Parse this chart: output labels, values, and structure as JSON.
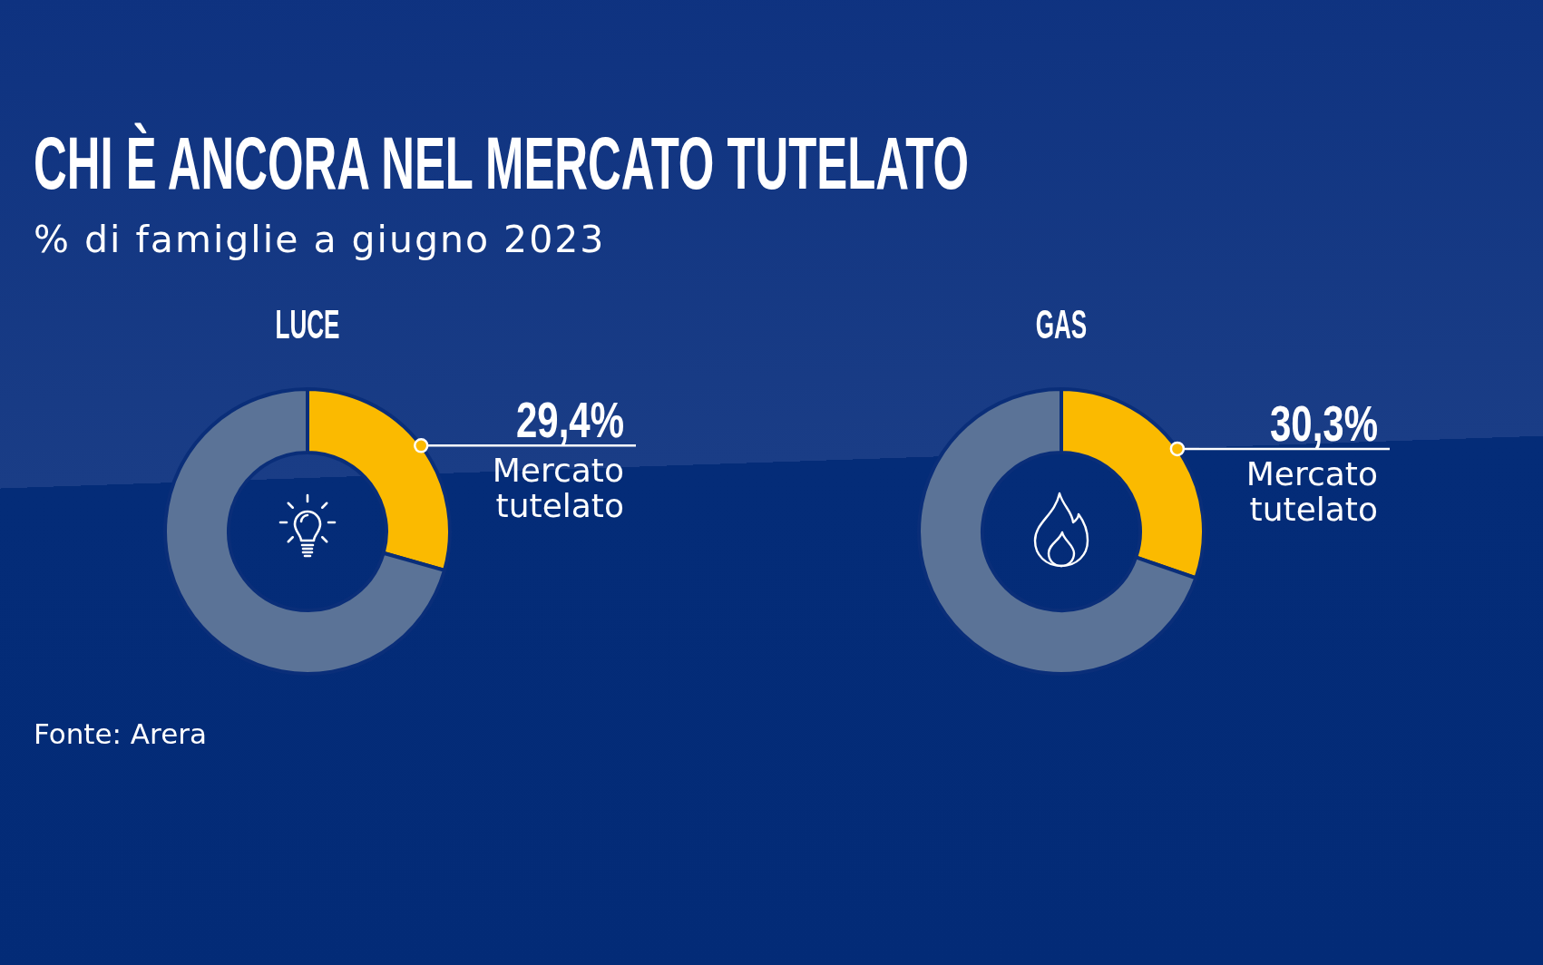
{
  "chart_data": [
    {
      "type": "other",
      "title": "CHI È ANCORA NEL MERCATO TUTELATO",
      "subtitle": "% di famiglie a giugno 2023",
      "annotations": [
        "Fonte: Arera"
      ]
    },
    {
      "type": "donut",
      "title": "LUCE",
      "categories": [
        "Mercato tutelato",
        null
      ],
      "values": [
        29.4,
        70.6
      ],
      "colors": [
        "#fbba00",
        "#5b7397"
      ],
      "value_labels": [
        "29,4%",
        null
      ]
    },
    {
      "type": "donut",
      "title": "GAS",
      "categories": [
        "Mercato tutelato",
        null
      ],
      "values": [
        30.3,
        69.7
      ],
      "colors": [
        "#fbba00",
        "#5b7397"
      ],
      "value_labels": [
        "30,3%",
        null
      ]
    }
  ]
}
